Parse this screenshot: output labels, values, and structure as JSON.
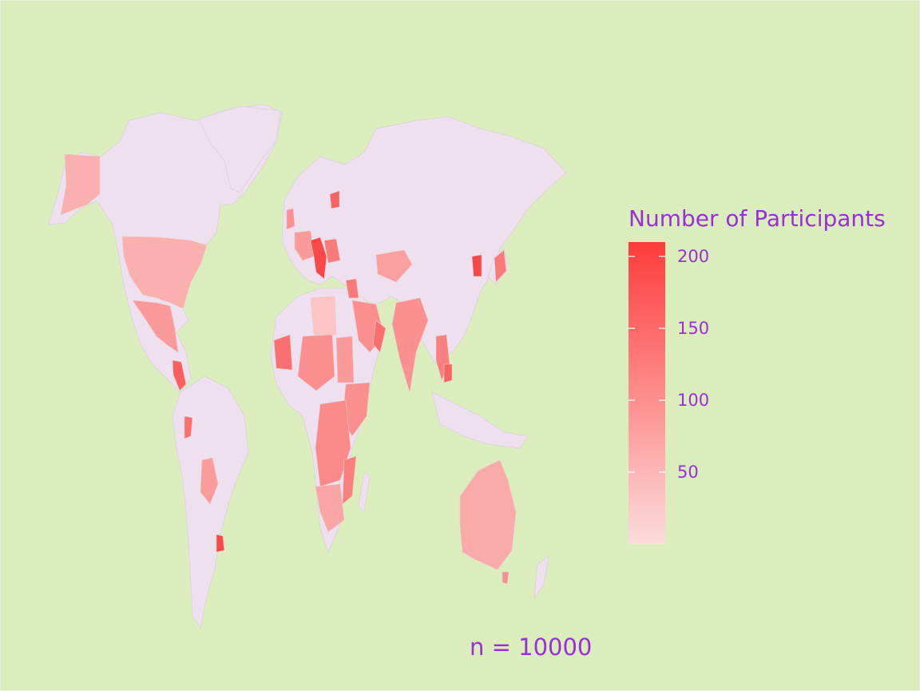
{
  "legend": {
    "title": "Number of Participants",
    "ticks": [
      {
        "label": "200",
        "value": 200
      },
      {
        "label": "150",
        "value": 150
      },
      {
        "label": "100",
        "value": 100
      },
      {
        "label": "50",
        "value": 50
      }
    ],
    "scale_min": 0,
    "scale_max": 210,
    "color_low": "#fcdcdc",
    "color_high": "#ff3b3b"
  },
  "caption": "n = 10000",
  "colors": {
    "background": "#dbedbd",
    "land_no_data": "#efe0ef",
    "text": "#9a2fd6"
  }
}
